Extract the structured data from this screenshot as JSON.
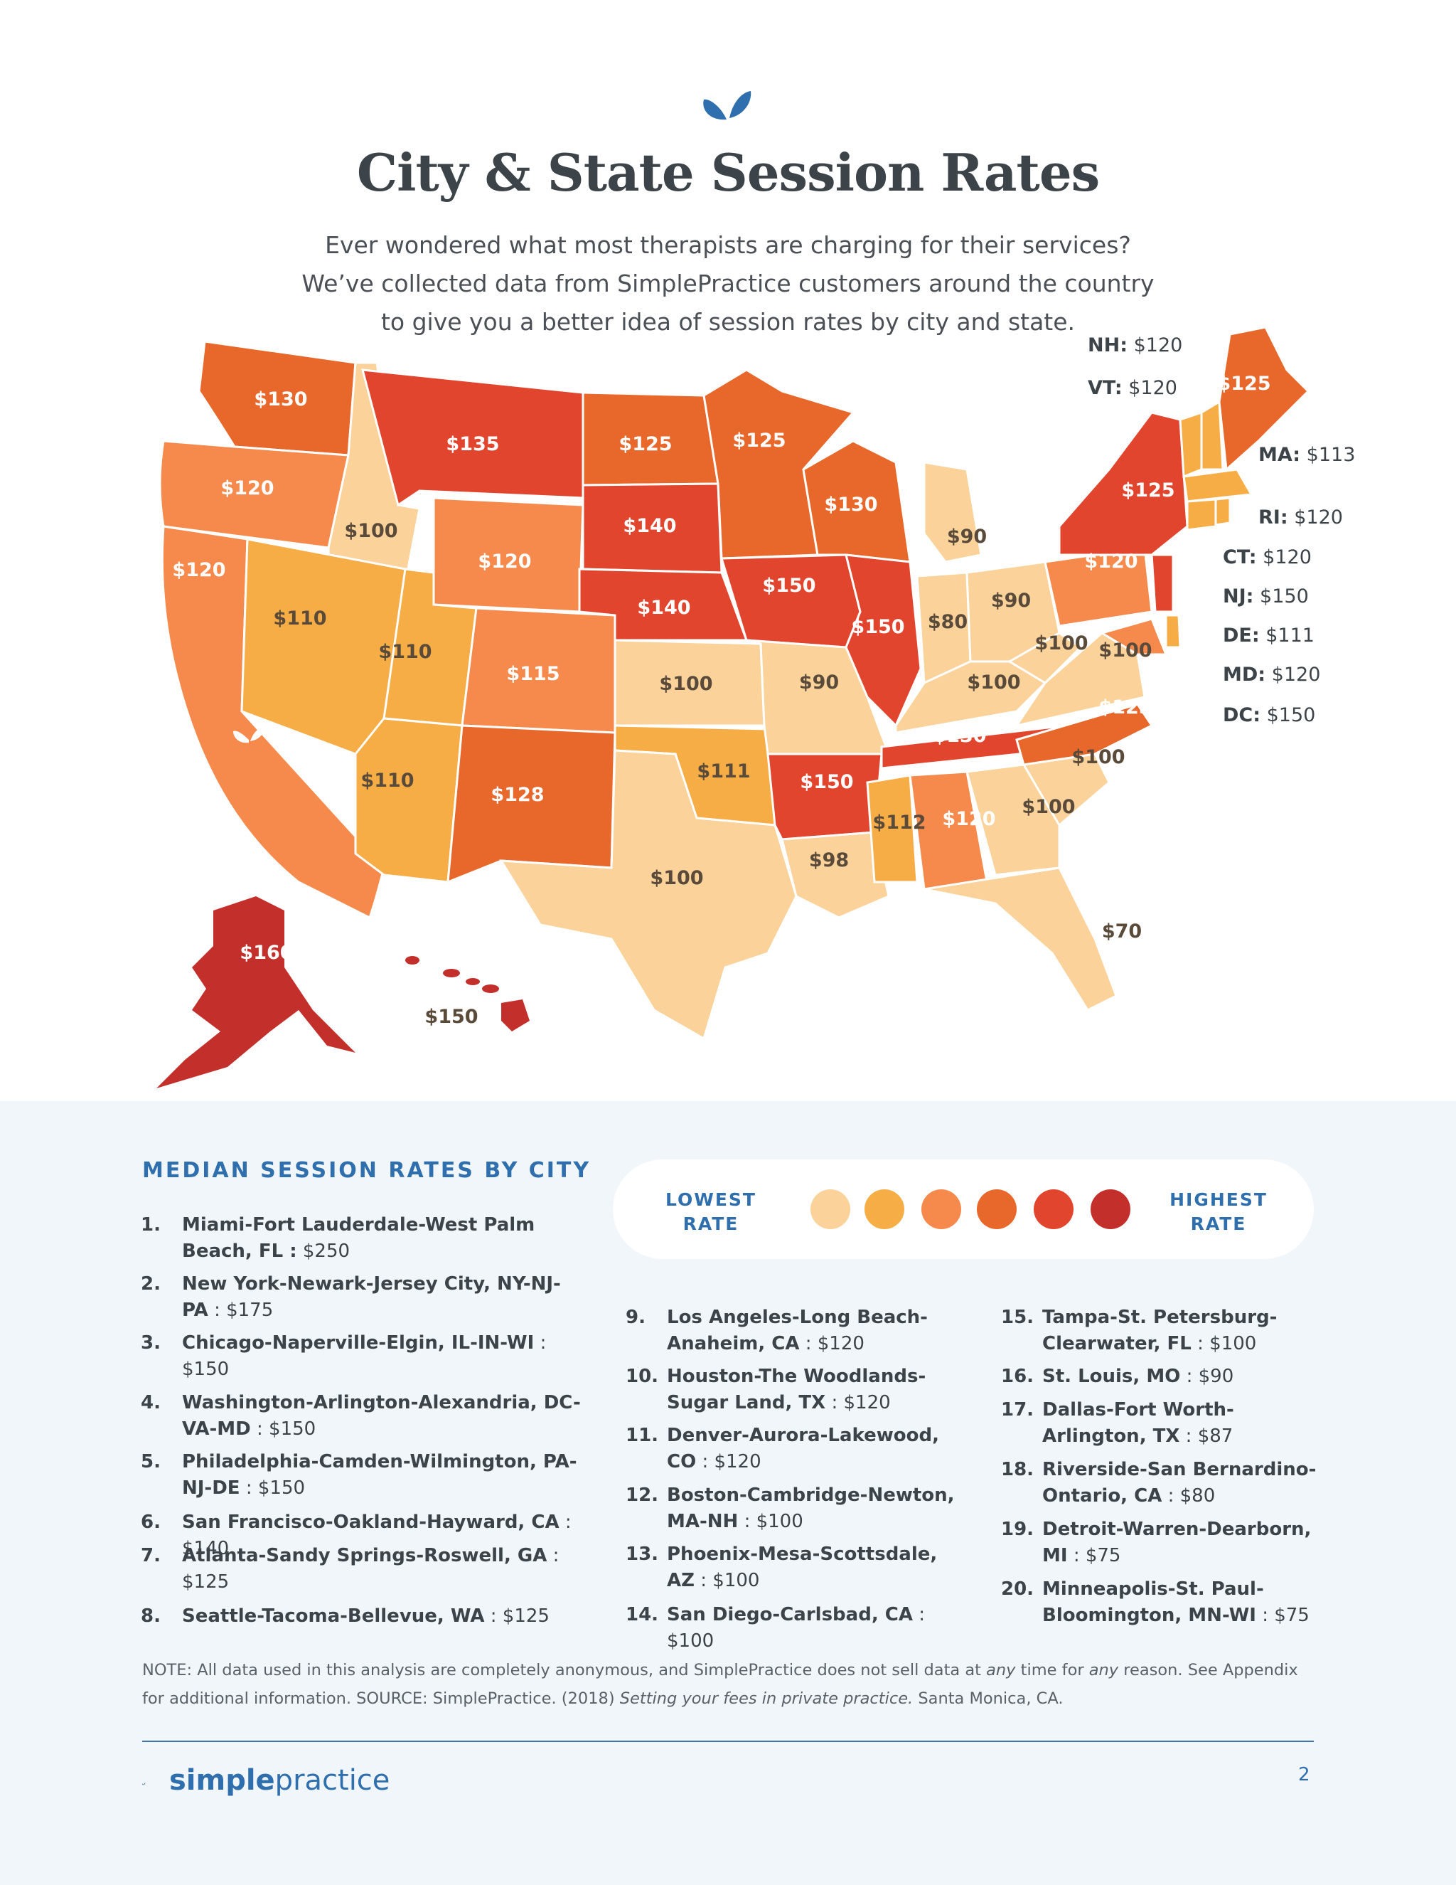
{
  "header": {
    "title": "City & State Session Rates",
    "intro": "Ever wondered what most therapists are charging for their services? We’ve collected data from SimplePractice customers around the country to give you a better idea of session rates by city and state."
  },
  "colors": {
    "lowest": "#fad29a",
    "low": "#f7ad45",
    "mid": "#f58a4c",
    "high": "#e8672a",
    "higher": "#e2452e",
    "highest": "#c3302b",
    "brand": "#2f6fae"
  },
  "map_labels": {
    "WA": "$130",
    "OR": "$120",
    "CA": "$120",
    "ID": "$100",
    "NV": "$110",
    "MT": "$135",
    "WY": "$120",
    "UT": "$110",
    "AZ": "$110",
    "CO": "$115",
    "NM": "$128",
    "ND": "$125",
    "SD": "$140",
    "NE": "$140",
    "KS": "$100",
    "OK": "$111",
    "TX": "$100",
    "MN": "$125",
    "IA": "$150",
    "MO": "$90",
    "AR": "$150",
    "LA": "$98",
    "WI": "$130",
    "IL": "$150",
    "MS": "$112",
    "MI": "$90",
    "IN": "$80",
    "OH": "$90",
    "KY": "$100",
    "TN": "$130",
    "AL": "$120",
    "GA": "$100",
    "FL": "$70",
    "SC": "$100",
    "NC": "$125",
    "VA": "$100",
    "WV": "$100",
    "PA": "$120",
    "NY": "$125",
    "ME": "$125",
    "AK": "$160",
    "HI": "$150"
  },
  "side_states": [
    {
      "abbr": "NH:",
      "rate": "$120"
    },
    {
      "abbr": "VT:",
      "rate": "$120"
    },
    {
      "abbr": "MA:",
      "rate": "$113"
    },
    {
      "abbr": "RI:",
      "rate": "$120"
    },
    {
      "abbr": "CT:",
      "rate": "$120"
    },
    {
      "abbr": "NJ:",
      "rate": "$150"
    },
    {
      "abbr": "DE:",
      "rate": "$111"
    },
    {
      "abbr": "MD:",
      "rate": "$120"
    },
    {
      "abbr": "DC:",
      "rate": "$150"
    }
  ],
  "city_section": {
    "heading": "MEDIAN SESSION RATES BY CITY",
    "legend_low": "LOWEST RATE",
    "legend_high": "HIGHEST RATE",
    "cities": [
      {
        "num": "1.",
        "name": "Miami-Fort Lauderdale-West Palm Beach, FL :",
        "rate": "$250"
      },
      {
        "num": "2.",
        "name": "New York-Newark-Jersey City, NY-NJ-PA",
        "rate": ": $175"
      },
      {
        "num": "3.",
        "name": "Chicago-Naperville-Elgin, IL-IN-WI",
        "rate": ": $150"
      },
      {
        "num": "4.",
        "name": "Washington-Arlington-Alexandria, DC-VA-MD",
        "rate": ": $150"
      },
      {
        "num": "5.",
        "name": "Philadelphia-Camden-Wilmington, PA-NJ-DE",
        "rate": ": $150"
      },
      {
        "num": "6.",
        "name": "San Francisco-Oakland-Hayward, CA",
        "rate": ": $140"
      },
      {
        "num": "7.",
        "name": "Atlanta-Sandy Springs-Roswell, GA",
        "rate": ": $125"
      },
      {
        "num": "8.",
        "name": "Seattle-Tacoma-Bellevue, WA",
        "rate": ": $125"
      },
      {
        "num": "9.",
        "name": "Los Angeles-Long Beach-Anaheim, CA",
        "rate": ": $120"
      },
      {
        "num": "10.",
        "name": "Houston-The Woodlands-Sugar Land, TX",
        "rate": ": $120"
      },
      {
        "num": "11.",
        "name": "Denver-Aurora-Lakewood, CO",
        "rate": ": $120"
      },
      {
        "num": "12.",
        "name": "Boston-Cambridge-Newton, MA-NH",
        "rate": ": $100"
      },
      {
        "num": "13.",
        "name": "Phoenix-Mesa-Scottsdale, AZ",
        "rate": ": $100"
      },
      {
        "num": "14.",
        "name": "San Diego-Carlsbad, CA",
        "rate": ": $100"
      },
      {
        "num": "15.",
        "name": "Tampa-St. Petersburg-Clearwater, FL",
        "rate": ": $100"
      },
      {
        "num": "16.",
        "name": "St. Louis, MO",
        "rate": ": $90"
      },
      {
        "num": "17.",
        "name": "Dallas-Fort Worth-Arlington, TX",
        "rate": ": $87"
      },
      {
        "num": "18.",
        "name": "Riverside-San Bernardino-Ontario, CA",
        "rate": ": $80"
      },
      {
        "num": "19.",
        "name": "Detroit-Warren-Dearborn, MI",
        "rate": ": $75"
      },
      {
        "num": "20.",
        "name": "Minneapolis-St. Paul-Bloomington, MN-WI",
        "rate": ": $75"
      }
    ]
  },
  "footer": {
    "note_a": "NOTE: All data used in this analysis are completely anonymous, and SimplePractice does not sell data at",
    "note_any1": "any",
    "note_b": "time for",
    "note_any2": "any",
    "note_c": "reason. See Appendix for additional information. SOURCE: SimplePractice. (2018)",
    "note_title": "Setting your fees in private practice.",
    "note_d": "Santa Monica, CA.",
    "brand_simple": "simple",
    "brand_practice": "practice",
    "page": "2"
  }
}
